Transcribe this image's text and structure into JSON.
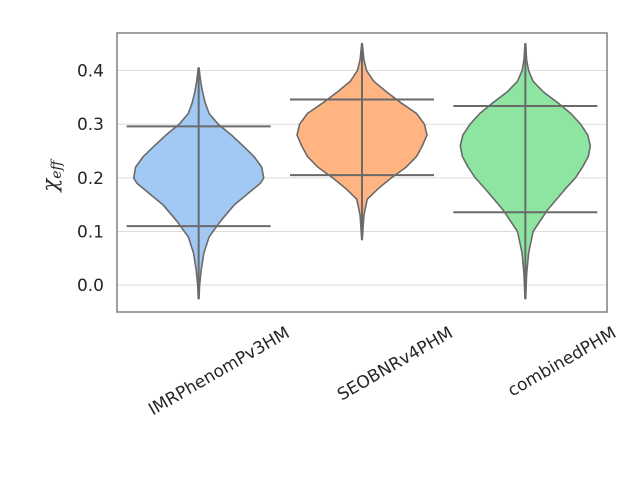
{
  "chart_data": {
    "type": "violin",
    "categories": [
      "IMRPhenomPv3HM",
      "SEOBNRv4PHM",
      "combinedPHM"
    ],
    "ylabel_symbol": "χ",
    "ylabel_subscript": "eff",
    "ylim": [
      -0.05,
      0.47
    ],
    "yticks": [
      0.0,
      0.1,
      0.2,
      0.3,
      0.4
    ],
    "ytick_labels": [
      "0.0",
      "0.1",
      "0.2",
      "0.3",
      "0.4"
    ],
    "grid": true,
    "colors": {
      "IMRPhenomPv3HM": "#a1c9f4",
      "SEOBNRv4PHM": "#ffb482",
      "combinedPHM": "#8de5a1",
      "stroke": "#6a6a6a",
      "grid": "#dddddd",
      "axes": "#808080"
    },
    "series": [
      {
        "category": "IMRPhenomPv3HM",
        "min": -0.025,
        "max": 0.405,
        "lower_line": 0.11,
        "upper_line": 0.296,
        "profile": [
          [
            -0.025,
            0.005
          ],
          [
            0.0,
            0.015
          ],
          [
            0.03,
            0.04
          ],
          [
            0.06,
            0.08
          ],
          [
            0.09,
            0.16
          ],
          [
            0.12,
            0.34
          ],
          [
            0.15,
            0.55
          ],
          [
            0.17,
            0.75
          ],
          [
            0.19,
            0.95
          ],
          [
            0.2,
            1.0
          ],
          [
            0.22,
            0.97
          ],
          [
            0.24,
            0.85
          ],
          [
            0.26,
            0.68
          ],
          [
            0.28,
            0.5
          ],
          [
            0.3,
            0.3
          ],
          [
            0.32,
            0.16
          ],
          [
            0.34,
            0.1
          ],
          [
            0.36,
            0.06
          ],
          [
            0.38,
            0.03
          ],
          [
            0.405,
            0.005
          ]
        ]
      },
      {
        "category": "SEOBNRv4PHM",
        "min": 0.085,
        "max": 0.45,
        "lower_line": 0.205,
        "upper_line": 0.346,
        "profile": [
          [
            0.085,
            0.005
          ],
          [
            0.1,
            0.012
          ],
          [
            0.13,
            0.03
          ],
          [
            0.16,
            0.08
          ],
          [
            0.18,
            0.25
          ],
          [
            0.2,
            0.45
          ],
          [
            0.22,
            0.68
          ],
          [
            0.24,
            0.84
          ],
          [
            0.26,
            0.93
          ],
          [
            0.28,
            1.0
          ],
          [
            0.3,
            0.96
          ],
          [
            0.32,
            0.84
          ],
          [
            0.34,
            0.6
          ],
          [
            0.36,
            0.38
          ],
          [
            0.38,
            0.18
          ],
          [
            0.4,
            0.07
          ],
          [
            0.42,
            0.03
          ],
          [
            0.45,
            0.005
          ]
        ]
      },
      {
        "category": "combinedPHM",
        "min": -0.025,
        "max": 0.45,
        "lower_line": 0.136,
        "upper_line": 0.334,
        "profile": [
          [
            -0.025,
            0.005
          ],
          [
            0.02,
            0.02
          ],
          [
            0.06,
            0.05
          ],
          [
            0.1,
            0.12
          ],
          [
            0.14,
            0.34
          ],
          [
            0.18,
            0.62
          ],
          [
            0.2,
            0.77
          ],
          [
            0.22,
            0.88
          ],
          [
            0.24,
            0.97
          ],
          [
            0.26,
            1.0
          ],
          [
            0.28,
            0.96
          ],
          [
            0.3,
            0.85
          ],
          [
            0.32,
            0.7
          ],
          [
            0.34,
            0.5
          ],
          [
            0.36,
            0.28
          ],
          [
            0.38,
            0.12
          ],
          [
            0.4,
            0.05
          ],
          [
            0.42,
            0.02
          ],
          [
            0.45,
            0.005
          ]
        ]
      }
    ]
  }
}
